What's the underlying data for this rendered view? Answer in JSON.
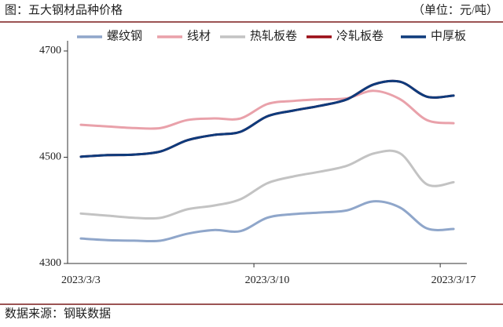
{
  "chart_data": {
    "type": "line",
    "title": "图：五大钢材品种价格",
    "unit_label": "（单位：元/吨）",
    "source": "数据来源：钢联数据",
    "categories": [
      "2023/3/3",
      null,
      null,
      null,
      null,
      null,
      null,
      "2023/3/10",
      null,
      null,
      null,
      null,
      null,
      null,
      "2023/3/17"
    ],
    "series": [
      {
        "name": "螺纹钢",
        "color": "#8fa6ca",
        "values": [
          4347,
          4344,
          4343,
          4343,
          4356,
          4363,
          4361,
          4386,
          4393,
          4396,
          4400,
          4417,
          4405,
          4366,
          4365
        ]
      },
      {
        "name": "线材",
        "color": "#e9a1aa",
        "values": [
          4561,
          4558,
          4555,
          4555,
          4570,
          4573,
          4573,
          4600,
          4606,
          4609,
          4611,
          4625,
          4609,
          4570,
          4564
        ]
      },
      {
        "name": "热轧板卷",
        "color": "#c3c3c3",
        "values": [
          4394,
          4390,
          4386,
          4386,
          4402,
          4409,
          4421,
          4451,
          4464,
          4473,
          4484,
          4507,
          4507,
          4449,
          4453
        ]
      },
      {
        "name": "冷轧板卷",
        "color": "#9b0d16",
        "values": [
          4501,
          4504,
          4505,
          4511,
          4532,
          4542,
          4548,
          4577,
          4588,
          4597,
          4609,
          4637,
          4642,
          4614,
          4616
        ]
      },
      {
        "name": "中厚板",
        "color": "#0e3b7c",
        "values": [
          4501,
          4504,
          4505,
          4511,
          4532,
          4542,
          4548,
          4577,
          4588,
          4597,
          4609,
          4637,
          4642,
          4614,
          4616
        ]
      }
    ],
    "ylim": [
      4300,
      4700
    ],
    "yticks": [
      4300,
      4500,
      4700
    ],
    "legend": "top"
  }
}
